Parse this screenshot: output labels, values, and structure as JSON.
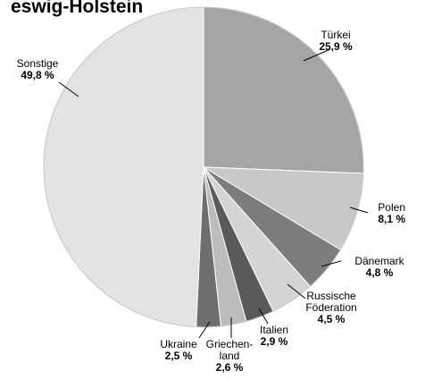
{
  "chart_data": {
    "type": "pie",
    "title": "eswig-Holstein",
    "slices": [
      {
        "name_lines": [
          "Türkei"
        ],
        "value_label": "25,9 %",
        "value": 25.9,
        "color": "#a5a5a5"
      },
      {
        "name_lines": [
          "Polen"
        ],
        "value_label": "8,1 %",
        "value": 8.1,
        "color": "#c8c8c8"
      },
      {
        "name_lines": [
          "Dänemark"
        ],
        "value_label": "4,8 %",
        "value": 4.8,
        "color": "#7d7d7d"
      },
      {
        "name_lines": [
          "Russische",
          "Föderation"
        ],
        "value_label": "4,5 %",
        "value": 4.5,
        "color": "#d4d4d4"
      },
      {
        "name_lines": [
          "Italien"
        ],
        "value_label": "2,9 %",
        "value": 2.9,
        "color": "#5a5a5a"
      },
      {
        "name_lines": [
          "Griechen-",
          "land"
        ],
        "value_label": "2,6 %",
        "value": 2.6,
        "color": "#bcbcbc"
      },
      {
        "name_lines": [
          "Ukraine"
        ],
        "value_label": "2,5 %",
        "value": 2.5,
        "color": "#6e6e6e"
      },
      {
        "name_lines": [
          "Sonstige"
        ],
        "value_label": "49,8 %",
        "value": 49.8,
        "color": "#e3e3e3"
      }
    ],
    "start": "12 o'clock",
    "direction": "clockwise"
  }
}
